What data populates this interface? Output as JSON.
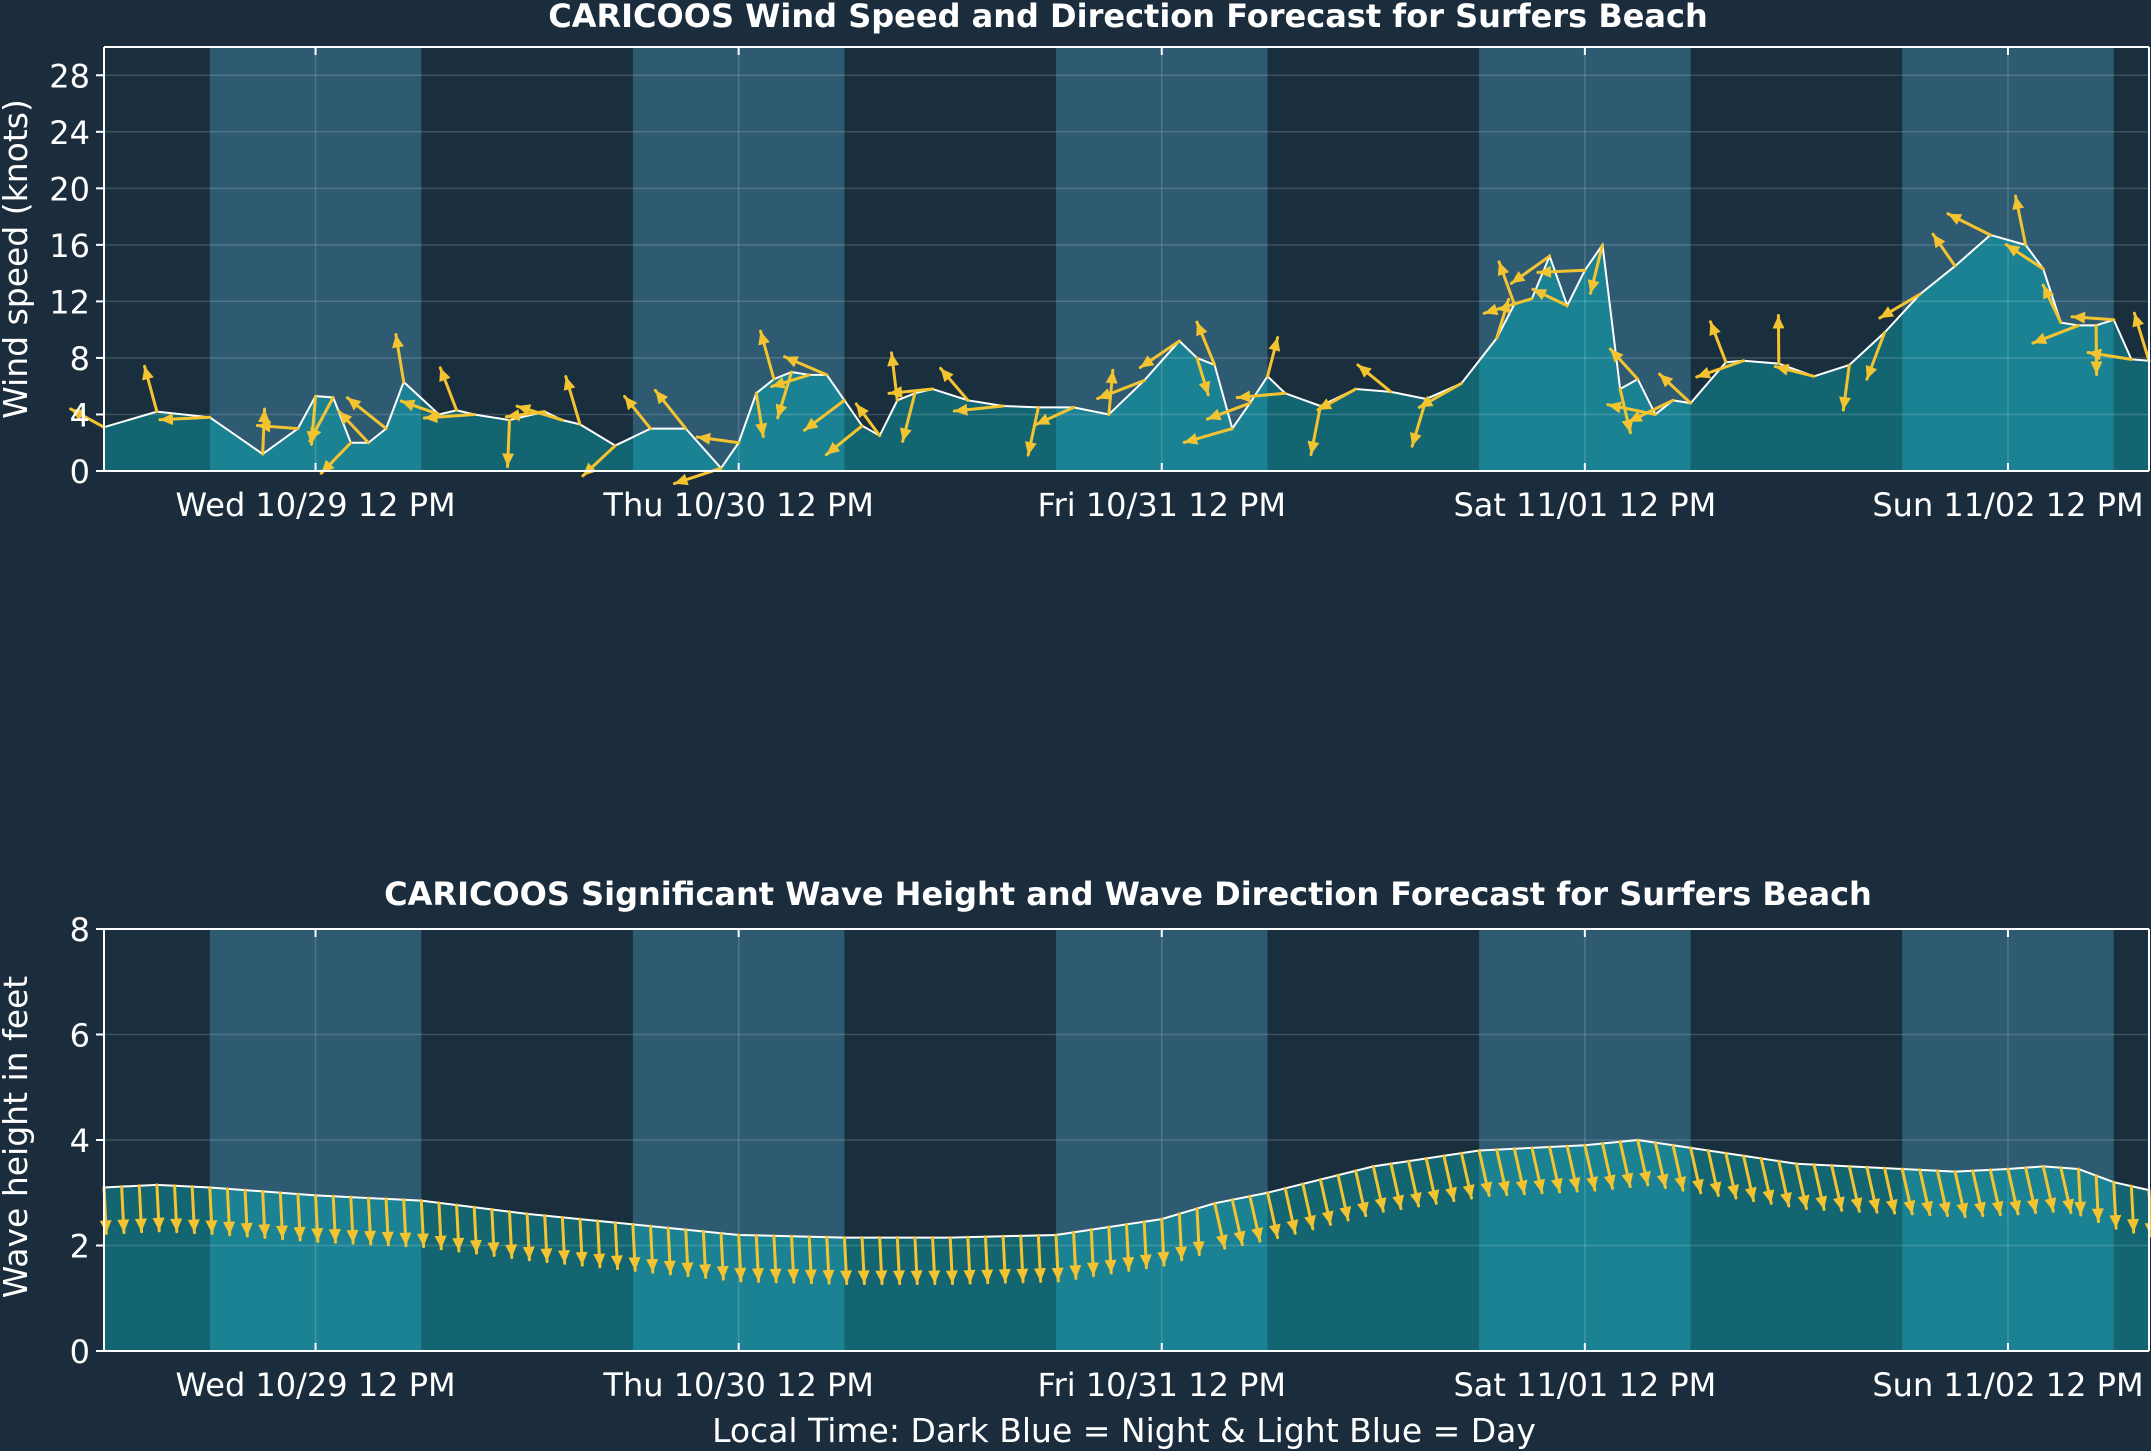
{
  "colors": {
    "background": "#1b2d3c",
    "night": "#1a2f3e",
    "day": "#2e5a72",
    "fill_day": "#1b8294",
    "fill_night": "#136572",
    "outline": "#ffffff",
    "arrow": "#f4c430"
  },
  "xlabel": "Local Time: Dark Blue = Night & Light Blue = Day",
  "chart_data": [
    {
      "type": "area",
      "title": "CARICOOS Wind Speed and Direction Forecast for Surfers Beach",
      "ylabel": "Wind speed (knots)",
      "ylim": [
        0,
        30
      ],
      "yticks": [
        0,
        4,
        8,
        12,
        16,
        20,
        24,
        28
      ],
      "x_unit": "hours since Wed 10/29 00:00",
      "xlim": [
        0,
        116
      ],
      "xticks": [
        12,
        36,
        60,
        84,
        108
      ],
      "xtick_labels": [
        "Wed 10/29 12 PM",
        "Thu 10/30 12 PM",
        "Fri 10/31 12 PM",
        "Sat 11/01 12 PM",
        "Sun 11/02 12 PM"
      ],
      "day_periods": [
        [
          6,
          18
        ],
        [
          30,
          42
        ],
        [
          54,
          66
        ],
        [
          78,
          90
        ],
        [
          102,
          114
        ]
      ],
      "grid": true,
      "series": [
        {
          "name": "Wind speed",
          "x": [
            0,
            3,
            6,
            9,
            11,
            12,
            13,
            14,
            15,
            16,
            17,
            19,
            20,
            21,
            23,
            25,
            26,
            27,
            29,
            31,
            33,
            35,
            36,
            37,
            38,
            39,
            40,
            41,
            42,
            43,
            44,
            45,
            46,
            47,
            49,
            51,
            53,
            55,
            57,
            59,
            61,
            62,
            63,
            64,
            65,
            66,
            67,
            69,
            71,
            73,
            75,
            77,
            79,
            80,
            81,
            82,
            83,
            84,
            85,
            86,
            87,
            88,
            89,
            90,
            92,
            93,
            95,
            97,
            99,
            101,
            103,
            105,
            107,
            109,
            110,
            111,
            112,
            113,
            114,
            115,
            116
          ],
          "values": [
            3.1,
            4.2,
            3.8,
            1.2,
            3.0,
            5.3,
            5.2,
            2.0,
            2.0,
            3.0,
            6.3,
            4.0,
            4.3,
            4.0,
            3.6,
            4.2,
            3.6,
            3.3,
            1.8,
            3.0,
            3.0,
            0.2,
            2.0,
            5.5,
            6.5,
            7.0,
            6.8,
            6.8,
            5.0,
            3.2,
            2.5,
            5.0,
            5.5,
            5.8,
            5.0,
            4.6,
            4.5,
            4.5,
            4.0,
            6.4,
            9.2,
            8.0,
            7.5,
            3.0,
            4.8,
            6.7,
            5.5,
            4.6,
            5.8,
            5.6,
            5.1,
            6.2,
            9.4,
            11.8,
            12.2,
            15.2,
            11.7,
            14.2,
            16.0,
            5.8,
            6.5,
            4.0,
            5.0,
            4.8,
            7.7,
            7.8,
            7.6,
            6.7,
            7.5,
            9.8,
            12.5,
            14.5,
            16.7,
            16.0,
            14.3,
            10.5,
            10.3,
            10.3,
            10.7,
            7.9,
            7.8
          ]
        }
      ]
    },
    {
      "type": "area",
      "title": "CARICOOS Significant Wave Height and Wave Direction Forecast for Surfers Beach",
      "ylabel": "Wave height in feet",
      "ylim": [
        0,
        8
      ],
      "yticks": [
        0,
        2,
        4,
        6,
        8
      ],
      "x_unit": "hours since Wed 10/29 00:00",
      "xlim": [
        0,
        116
      ],
      "xticks": [
        12,
        36,
        60,
        84,
        108
      ],
      "xtick_labels": [
        "Wed 10/29 12 PM",
        "Thu 10/30 12 PM",
        "Fri 10/31 12 PM",
        "Sat 11/01 12 PM",
        "Sun 11/02 12 PM"
      ],
      "day_periods": [
        [
          6,
          18
        ],
        [
          30,
          42
        ],
        [
          54,
          66
        ],
        [
          78,
          90
        ],
        [
          102,
          114
        ]
      ],
      "grid": true,
      "series": [
        {
          "name": "Significant wave height",
          "x": [
            0,
            3,
            6,
            12,
            18,
            24,
            30,
            36,
            42,
            48,
            54,
            60,
            63,
            66,
            72,
            78,
            84,
            87,
            90,
            96,
            102,
            105,
            108,
            110,
            112,
            114,
            116
          ],
          "values": [
            3.1,
            3.15,
            3.1,
            2.95,
            2.85,
            2.6,
            2.4,
            2.2,
            2.15,
            2.15,
            2.2,
            2.5,
            2.8,
            3.0,
            3.5,
            3.8,
            3.9,
            4.0,
            3.85,
            3.55,
            3.45,
            3.4,
            3.45,
            3.5,
            3.45,
            3.2,
            3.05
          ]
        }
      ]
    }
  ]
}
